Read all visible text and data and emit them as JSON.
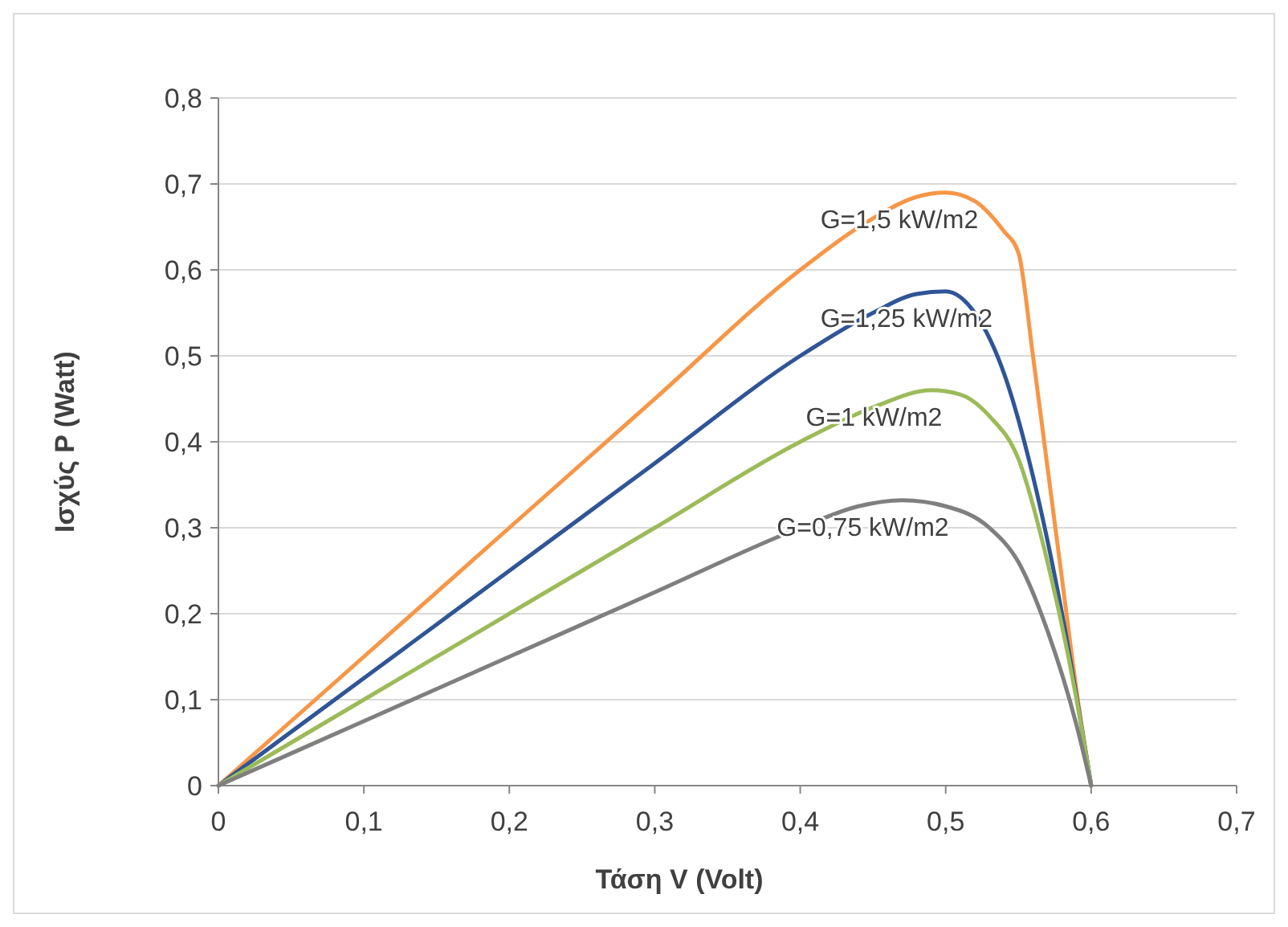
{
  "chart_data": {
    "type": "line",
    "xlabel": "Τάση V (Volt)",
    "ylabel": "Ισχύς P (Watt)",
    "xlim": [
      0,
      0.7
    ],
    "xticks": [
      0,
      {
        "value": 0.1,
        "label": "0,1"
      },
      {
        "value": 0.2,
        "label": "0,2"
      },
      {
        "value": 0.3,
        "label": "0,3"
      },
      {
        "value": 0.4,
        "label": "0,4"
      },
      {
        "value": 0.5,
        "label": "0,5"
      },
      {
        "value": 0.6,
        "label": "0,6"
      },
      {
        "value": 0.7,
        "label": "0,7"
      }
    ],
    "ylim": [
      0,
      0.8
    ],
    "yticks": [
      0,
      {
        "value": 0.1,
        "label": "0,1"
      },
      {
        "value": 0.2,
        "label": "0,2"
      },
      {
        "value": 0.3,
        "label": "0,3"
      },
      {
        "value": 0.4,
        "label": "0,4"
      },
      {
        "value": 0.5,
        "label": "0,5"
      },
      {
        "value": 0.6,
        "label": "0,6"
      },
      {
        "value": 0.7,
        "label": "0,7"
      },
      {
        "value": 0.8,
        "label": "0,8"
      }
    ],
    "grid": "y",
    "marker": "none",
    "line_style": "solid",
    "series": [
      {
        "name": "G=1,5 kW/m2",
        "color": "#f79646",
        "x": [
          0,
          0.1,
          0.2,
          0.3,
          0.4,
          0.45,
          0.48,
          0.5,
          0.52,
          0.54,
          0.55,
          0.56,
          0.57,
          0.58,
          0.59,
          0.6
        ],
        "values": [
          0,
          0.15,
          0.3,
          0.45,
          0.6,
          0.66,
          0.685,
          0.69,
          0.68,
          0.645,
          0.62,
          0.5,
          0.37,
          0.24,
          0.11,
          0
        ]
      },
      {
        "name": "G=1,25 kW/m2",
        "color": "#2f5597",
        "x": [
          0,
          0.1,
          0.2,
          0.3,
          0.4,
          0.45,
          0.48,
          0.5,
          0.52,
          0.54,
          0.56,
          0.58,
          0.6
        ],
        "values": [
          0,
          0.125,
          0.25,
          0.375,
          0.5,
          0.55,
          0.572,
          0.575,
          0.55,
          0.48,
          0.36,
          0.2,
          0
        ]
      },
      {
        "name": "G=1 kW/m2",
        "color": "#9bbb59",
        "x": [
          0,
          0.1,
          0.2,
          0.3,
          0.4,
          0.45,
          0.49,
          0.51,
          0.53,
          0.55,
          0.57,
          0.59,
          0.6
        ],
        "values": [
          0,
          0.1,
          0.2,
          0.3,
          0.4,
          0.44,
          0.46,
          0.455,
          0.43,
          0.38,
          0.26,
          0.1,
          0
        ]
      },
      {
        "name": "G=0,75 kW/m2",
        "color": "#7f7f7f",
        "x": [
          0,
          0.1,
          0.2,
          0.3,
          0.4,
          0.44,
          0.47,
          0.5,
          0.53,
          0.55,
          0.57,
          0.59,
          0.6
        ],
        "values": [
          0,
          0.075,
          0.15,
          0.225,
          0.3,
          0.325,
          0.332,
          0.325,
          0.3,
          0.26,
          0.18,
          0.07,
          0
        ]
      }
    ]
  }
}
